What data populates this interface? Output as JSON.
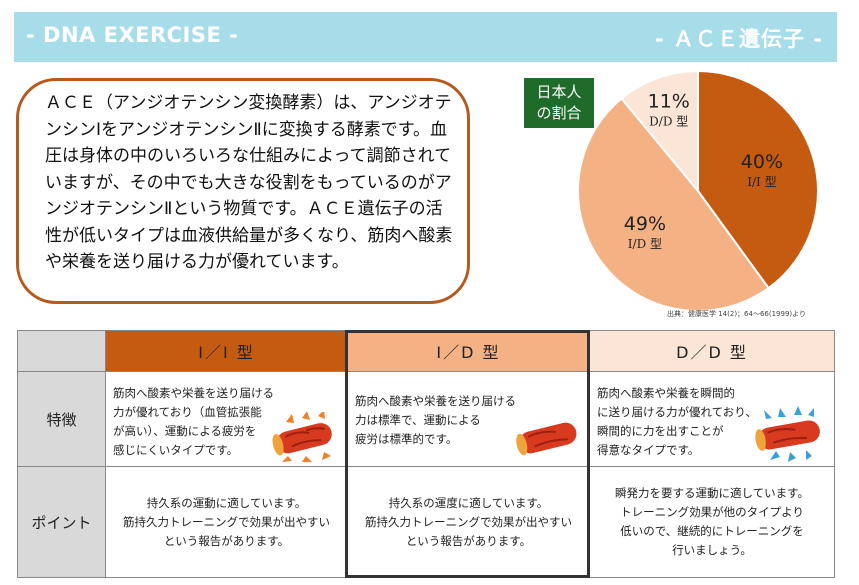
{
  "header": {
    "left_title": "- DNA EXERCISE -",
    "right_title": "- ＡＣＥ遺伝子 -"
  },
  "description": "ＡＣＥ（アンジオテンシン変換酵素）は、アンジオテンシンⅠをアンジオテンシンⅡに変換する酵素です。血圧は身体の中のいろいろな仕組みによって調節されていますが、その中でも大きな役割をもっているのがアンジオテンシンⅡという物質です。ＡＣＥ遺伝子の活性が低いタイプは血液供給量が多くなり、筋肉へ酸素や栄養を送り届ける力が優れています。",
  "badge": {
    "line1": "日本人",
    "line2": "の割合"
  },
  "chart_data": {
    "type": "pie",
    "slices": [
      {
        "label": "I/I 型",
        "value": 40,
        "display": "40%",
        "color": "#c55a11"
      },
      {
        "label": "I/D 型",
        "value": 49,
        "display": "49%",
        "color": "#f4b183"
      },
      {
        "label": "D/D 型",
        "value": 11,
        "display": "11%",
        "color": "#fbe5d6"
      }
    ],
    "source": "出典：健康医学 14(2)；64〜66(1999)より"
  },
  "table": {
    "columns": [
      {
        "name": "I/I 型",
        "header": "I／I 型",
        "color": "#c55a11"
      },
      {
        "name": "I/D 型",
        "header": "I／D 型",
        "color": "#f4b183"
      },
      {
        "name": "D/D 型",
        "header": "D／D 型",
        "color": "#fbe5d6"
      }
    ],
    "row_labels": {
      "feature": "特徴",
      "point": "ポイント"
    },
    "features": [
      [
        "筋肉へ酸素や栄養を送り届ける",
        "力が優れており（血管拡張能",
        "が高い）、運動による疲労を",
        "感じにくいタイプです。"
      ],
      [
        "筋肉へ酸素や栄養を送り届ける",
        "力は標準で、運動による",
        "疲労は標準的です。"
      ],
      [
        "筋肉へ酸素や栄養を瞬間的",
        "に送り届ける力が優れており、",
        "瞬間的に力を出すことが",
        "得意なタイプです。"
      ]
    ],
    "points": [
      [
        "持久系の運動に適しています。",
        "筋持久力トレーニングで効果が出やすい",
        "という報告があります。"
      ],
      [
        "持久系の運度に適しています。",
        "筋持久力トレーニングで効果が出やすい",
        "という報告があります。"
      ],
      [
        "瞬発力を要する運動に適しています。",
        "トレーニング効果が他のタイプより",
        "低いので、継続的にトレーニングを",
        "行いましょう。"
      ]
    ],
    "icons": [
      "blood-vessel-outward-arrows-icon",
      "blood-vessel-icon",
      "blood-vessel-inward-arrows-icon"
    ]
  }
}
